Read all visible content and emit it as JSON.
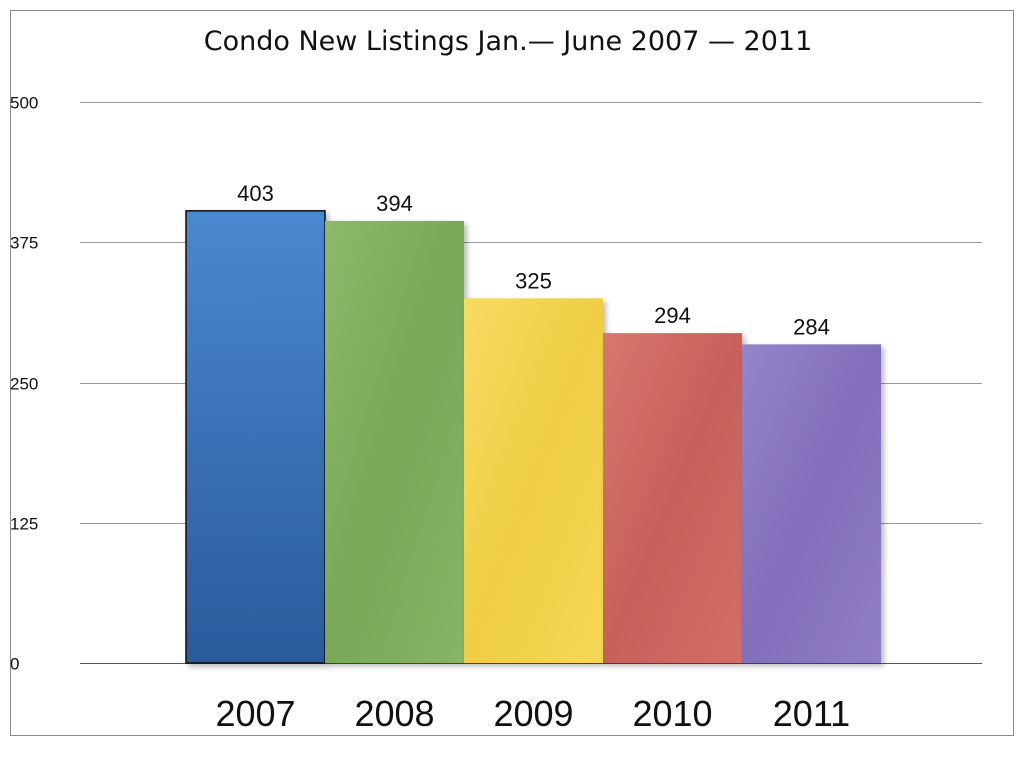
{
  "chart_data": {
    "type": "bar",
    "title": "Condo New Listings Jan.— June 2007 — 2011",
    "xlabel": "",
    "ylabel": "",
    "categories": [
      "2007",
      "2008",
      "2009",
      "2010",
      "2011"
    ],
    "values": [
      403,
      394,
      325,
      294,
      284
    ],
    "data_labels": [
      "403",
      "394",
      "325",
      "294",
      "284"
    ],
    "ylim": [
      0,
      500
    ],
    "y_ticks": [
      0,
      125,
      250,
      375,
      500
    ],
    "y_tick_labels": [
      "0",
      "125",
      "250",
      "375",
      "500"
    ],
    "grid": true,
    "legend": "none",
    "colors": [
      "#3a74bd",
      "#7fae5e",
      "#f3d34e",
      "#cf6a63",
      "#8a76c1"
    ]
  }
}
